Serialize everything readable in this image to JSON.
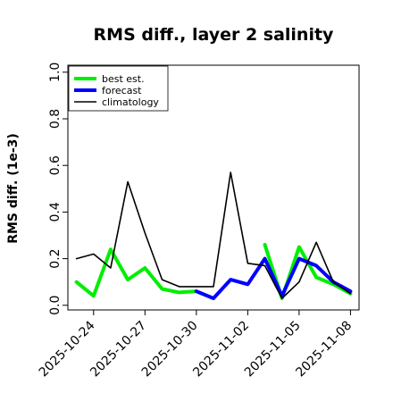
{
  "chart_data": {
    "type": "line",
    "title": "RMS diff., layer 2 salinity",
    "ylabel": "RMS diff. (1e-3)",
    "xlabel": "",
    "ylim": [
      -0.02,
      1.03
    ],
    "yticks": [
      "0.0",
      "0.2",
      "0.4",
      "0.6",
      "0.8",
      "1.0"
    ],
    "xlim": [
      "2025-10-22 12:00",
      "2025-11-08 12:00"
    ],
    "xticks": [
      {
        "label": "2025-10-24",
        "color": "#000000"
      },
      {
        "label": "2025-10-27",
        "color": "#000000"
      },
      {
        "label": "2025-10-30",
        "color": "#228b22"
      },
      {
        "label": "2025-11-02",
        "color": "#000000"
      },
      {
        "label": "2025-11-05",
        "color": "#000000"
      },
      {
        "label": "2025-11-08",
        "color": "#000000"
      }
    ],
    "x": [
      "2025-10-23",
      "2025-10-24",
      "2025-10-25",
      "2025-10-26",
      "2025-10-27",
      "2025-10-28",
      "2025-10-29",
      "2025-10-30",
      "2025-10-31",
      "2025-11-01",
      "2025-11-02",
      "2025-11-03",
      "2025-11-04",
      "2025-11-05",
      "2025-11-06",
      "2025-11-07",
      "2025-11-08"
    ],
    "series": [
      {
        "name": "best est.",
        "color": "#00ee00",
        "values": [
          0.1,
          0.04,
          0.24,
          0.11,
          0.16,
          0.07,
          0.055,
          0.06,
          null,
          null,
          null,
          0.26,
          0.03,
          0.25,
          0.12,
          0.09,
          0.05
        ]
      },
      {
        "name": "forecast",
        "color": "#0000ff",
        "values": [
          null,
          null,
          null,
          null,
          null,
          null,
          null,
          0.06,
          0.03,
          0.11,
          0.09,
          0.2,
          0.04,
          0.2,
          0.17,
          0.1,
          0.06
        ]
      },
      {
        "name": "climatology",
        "color": "#000000",
        "values": [
          0.2,
          0.22,
          0.16,
          0.53,
          0.31,
          0.11,
          0.08,
          0.08,
          0.08,
          0.57,
          0.18,
          0.17,
          0.03,
          0.1,
          0.27,
          0.1,
          0.05
        ]
      }
    ],
    "legend_position": "top-left",
    "grid": false
  }
}
